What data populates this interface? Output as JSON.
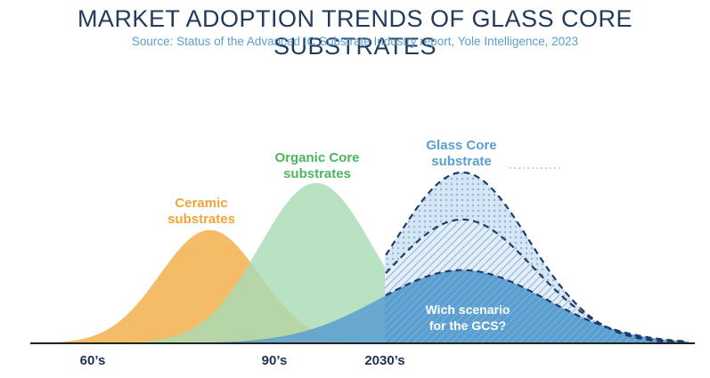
{
  "colors": {
    "title": "#223a5e",
    "subtitle": "#5b9fcc",
    "ceramic": "#f4b860",
    "ceramic_label": "#f0a43a",
    "organic": "#a8dcb4",
    "organic_label": "#4cb560",
    "glass": "#5b9fd1",
    "glass_label": "#5b9fd1",
    "glass_dark": "#1f3a63",
    "axis": "#222222",
    "tick_label": "#1f3350",
    "overlap_blue": "#6aa8d6",
    "overlap_green": "#9bc79b"
  },
  "header": {
    "title": "MARKET ADOPTION TRENDS OF GLASS CORE SUBSTRATES",
    "subtitle": "Source: Status of the Advanced IC Substrate Industry report, Yole Intelligence, 2023"
  },
  "chart_data": {
    "type": "area",
    "title": "MARKET ADOPTION TRENDS OF GLASS CORE SUBSTRATES",
    "xlabel": "",
    "ylabel": "",
    "x_ticks": [
      "60’s",
      "90’s",
      "2030’s"
    ],
    "legend": "none",
    "grid": false,
    "series": [
      {
        "name_lines": [
          "Ceramic",
          "substrates"
        ],
        "shape": "bell",
        "peak_x": 0.27,
        "peak_y": 0.65,
        "spread": 0.075
      },
      {
        "name_lines": [
          "Organic Core",
          "substrates"
        ],
        "shape": "bell",
        "peak_x": 0.43,
        "peak_y": 0.92,
        "spread": 0.085
      },
      {
        "name_lines": [
          "Glass Core",
          "substrate"
        ],
        "shape": "bell",
        "peak_x": 0.65,
        "peak_y": 0.98,
        "spread": 0.1
      }
    ],
    "scenarios": [
      {
        "level": "high",
        "peak_y": 0.98
      },
      {
        "level": "mid",
        "peak_y": 0.71
      },
      {
        "level": "low",
        "peak_y": 0.42
      }
    ],
    "annotation_lines": [
      "Wich scenario",
      "for the GCS?"
    ]
  }
}
